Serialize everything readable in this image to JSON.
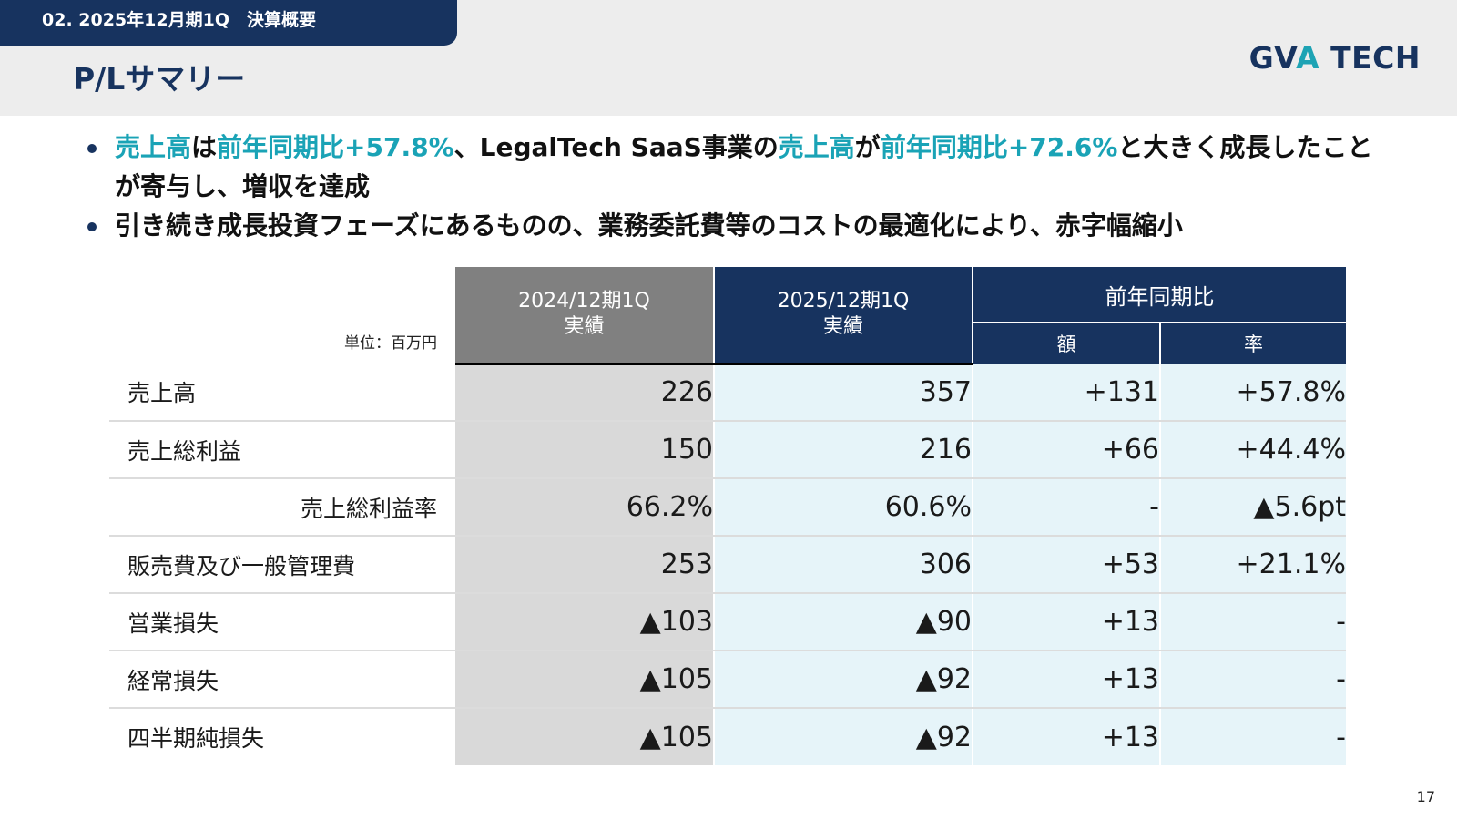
{
  "header": {
    "section_label": "02. 2025年12月期1Q　決算概要",
    "title": "P/Lサマリー",
    "logo_prefix": "GV",
    "logo_accent": "A",
    "logo_suffix": " TECH"
  },
  "bullets": {
    "b1": {
      "t1": "売上高",
      "t2": "は",
      "t3": "前年同期比+57.8%",
      "t4": "、LegalTech SaaS事業の",
      "t5": "売上高",
      "t6": "が",
      "t7": "前年同期比+72.6%",
      "t8": "と大きく成長したことが寄与し、増収を達成"
    },
    "b2": "引き続き成長投資フェーズにあるものの、業務委託費等のコストの最適化により、赤字幅縮小"
  },
  "table": {
    "unit": "単位：百万円",
    "col_prev_period": "2024/12期1Q",
    "col_prev_sub": "実績",
    "col_cur_period": "2025/12期1Q",
    "col_cur_sub": "実績",
    "col_yoy": "前年同期比",
    "col_amount": "額",
    "col_rate": "率",
    "rows": [
      {
        "label": "売上高",
        "prev": "226",
        "cur": "357",
        "amount": "+131",
        "rate": "+57.8%"
      },
      {
        "label": "売上総利益",
        "prev": "150",
        "cur": "216",
        "amount": "+66",
        "rate": "+44.4%"
      },
      {
        "label": "売上総利益率",
        "prev": "66.2%",
        "cur": "60.6%",
        "amount": "-",
        "rate": "▲5.6pt"
      },
      {
        "label": "販売費及び一般管理費",
        "prev": "253",
        "cur": "306",
        "amount": "+53",
        "rate": "+21.1%"
      },
      {
        "label": "営業損失",
        "prev": "▲103",
        "cur": "▲90",
        "amount": "+13",
        "rate": "-"
      },
      {
        "label": "経常損失",
        "prev": "▲105",
        "cur": "▲92",
        "amount": "+13",
        "rate": "-"
      },
      {
        "label": "四半期純損失",
        "prev": "▲105",
        "cur": "▲92",
        "amount": "+13",
        "rate": "-"
      }
    ]
  },
  "page_number": "17",
  "colors": {
    "navy": "#17335f",
    "teal_highlight": "#1aa3b6",
    "prev_fill": "#d9d9d9",
    "cur_fill": "#e6f4f9",
    "header_gray": "#808080"
  }
}
